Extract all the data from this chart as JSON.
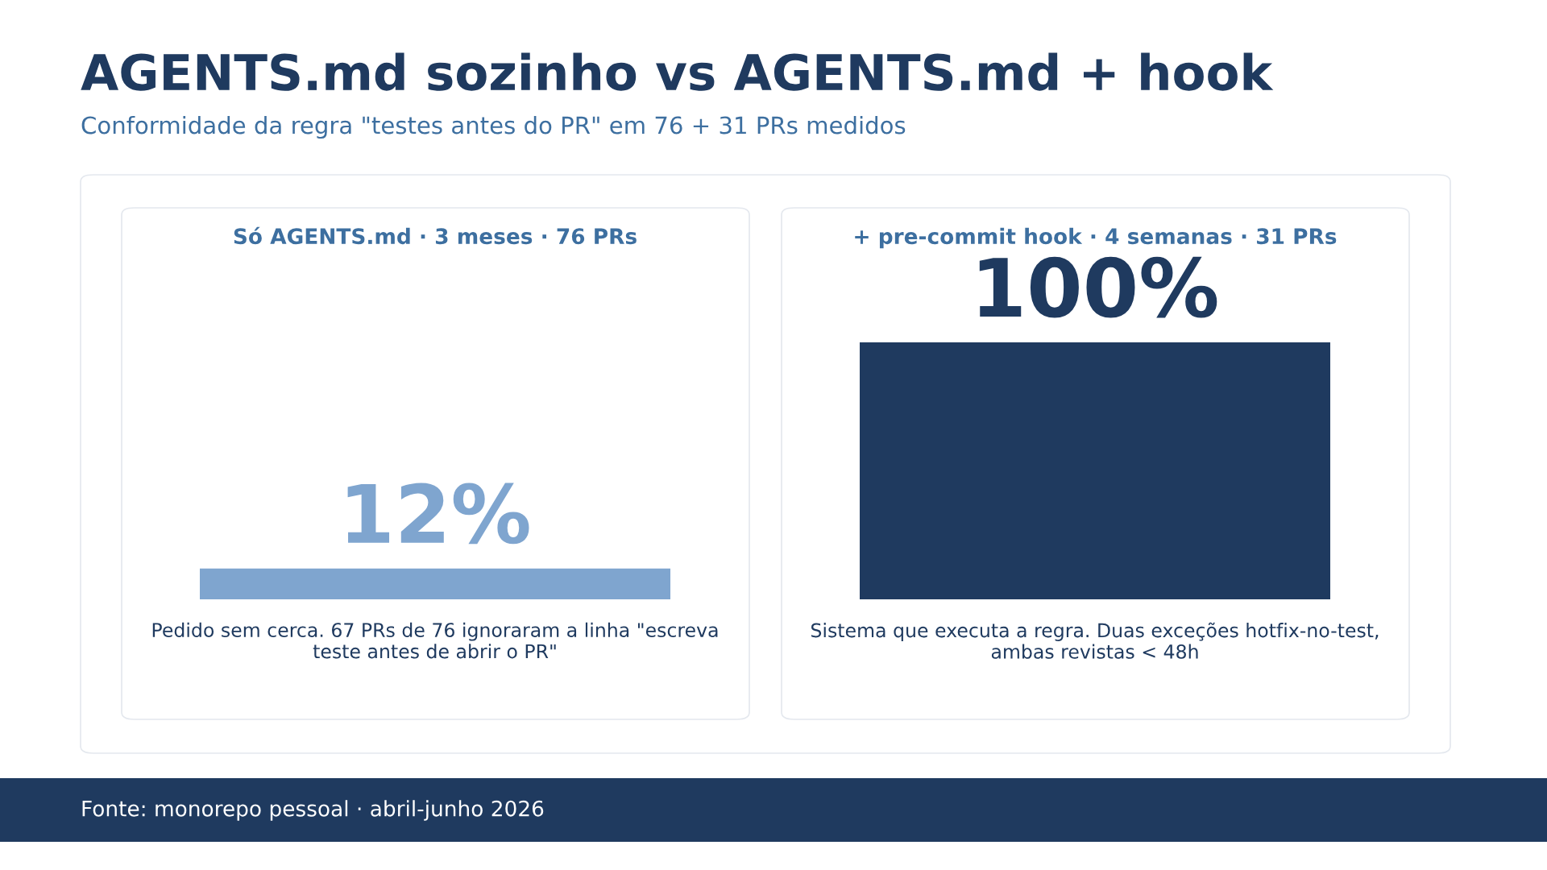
{
  "chart_data": {
    "type": "bar",
    "title": "AGENTS.md sozinho vs AGENTS.md + hook",
    "subtitle": "Conformidade da regra \"testes antes do PR\" em 76 + 31 PRs medidos",
    "categories": [
      "Só AGENTS.md · 3 meses · 76 PRs",
      "+ pre-commit hook · 4 semanas · 31 PRs"
    ],
    "values": [
      12,
      100
    ],
    "colors": [
      "#7fa5cf",
      "#1f3a5f"
    ],
    "value_labels": [
      "12%",
      "100%"
    ],
    "annotations": [
      "Pedido sem cerca. 67 PRs de 76 ignoraram a linha \"escreva teste antes de abrir o PR\"",
      "Sistema que executa a regra. Duas exceções hotfix-no-test, ambas revistas < 48h",
      "Fonte: monorepo pessoal · abril-junho 2026"
    ]
  }
}
